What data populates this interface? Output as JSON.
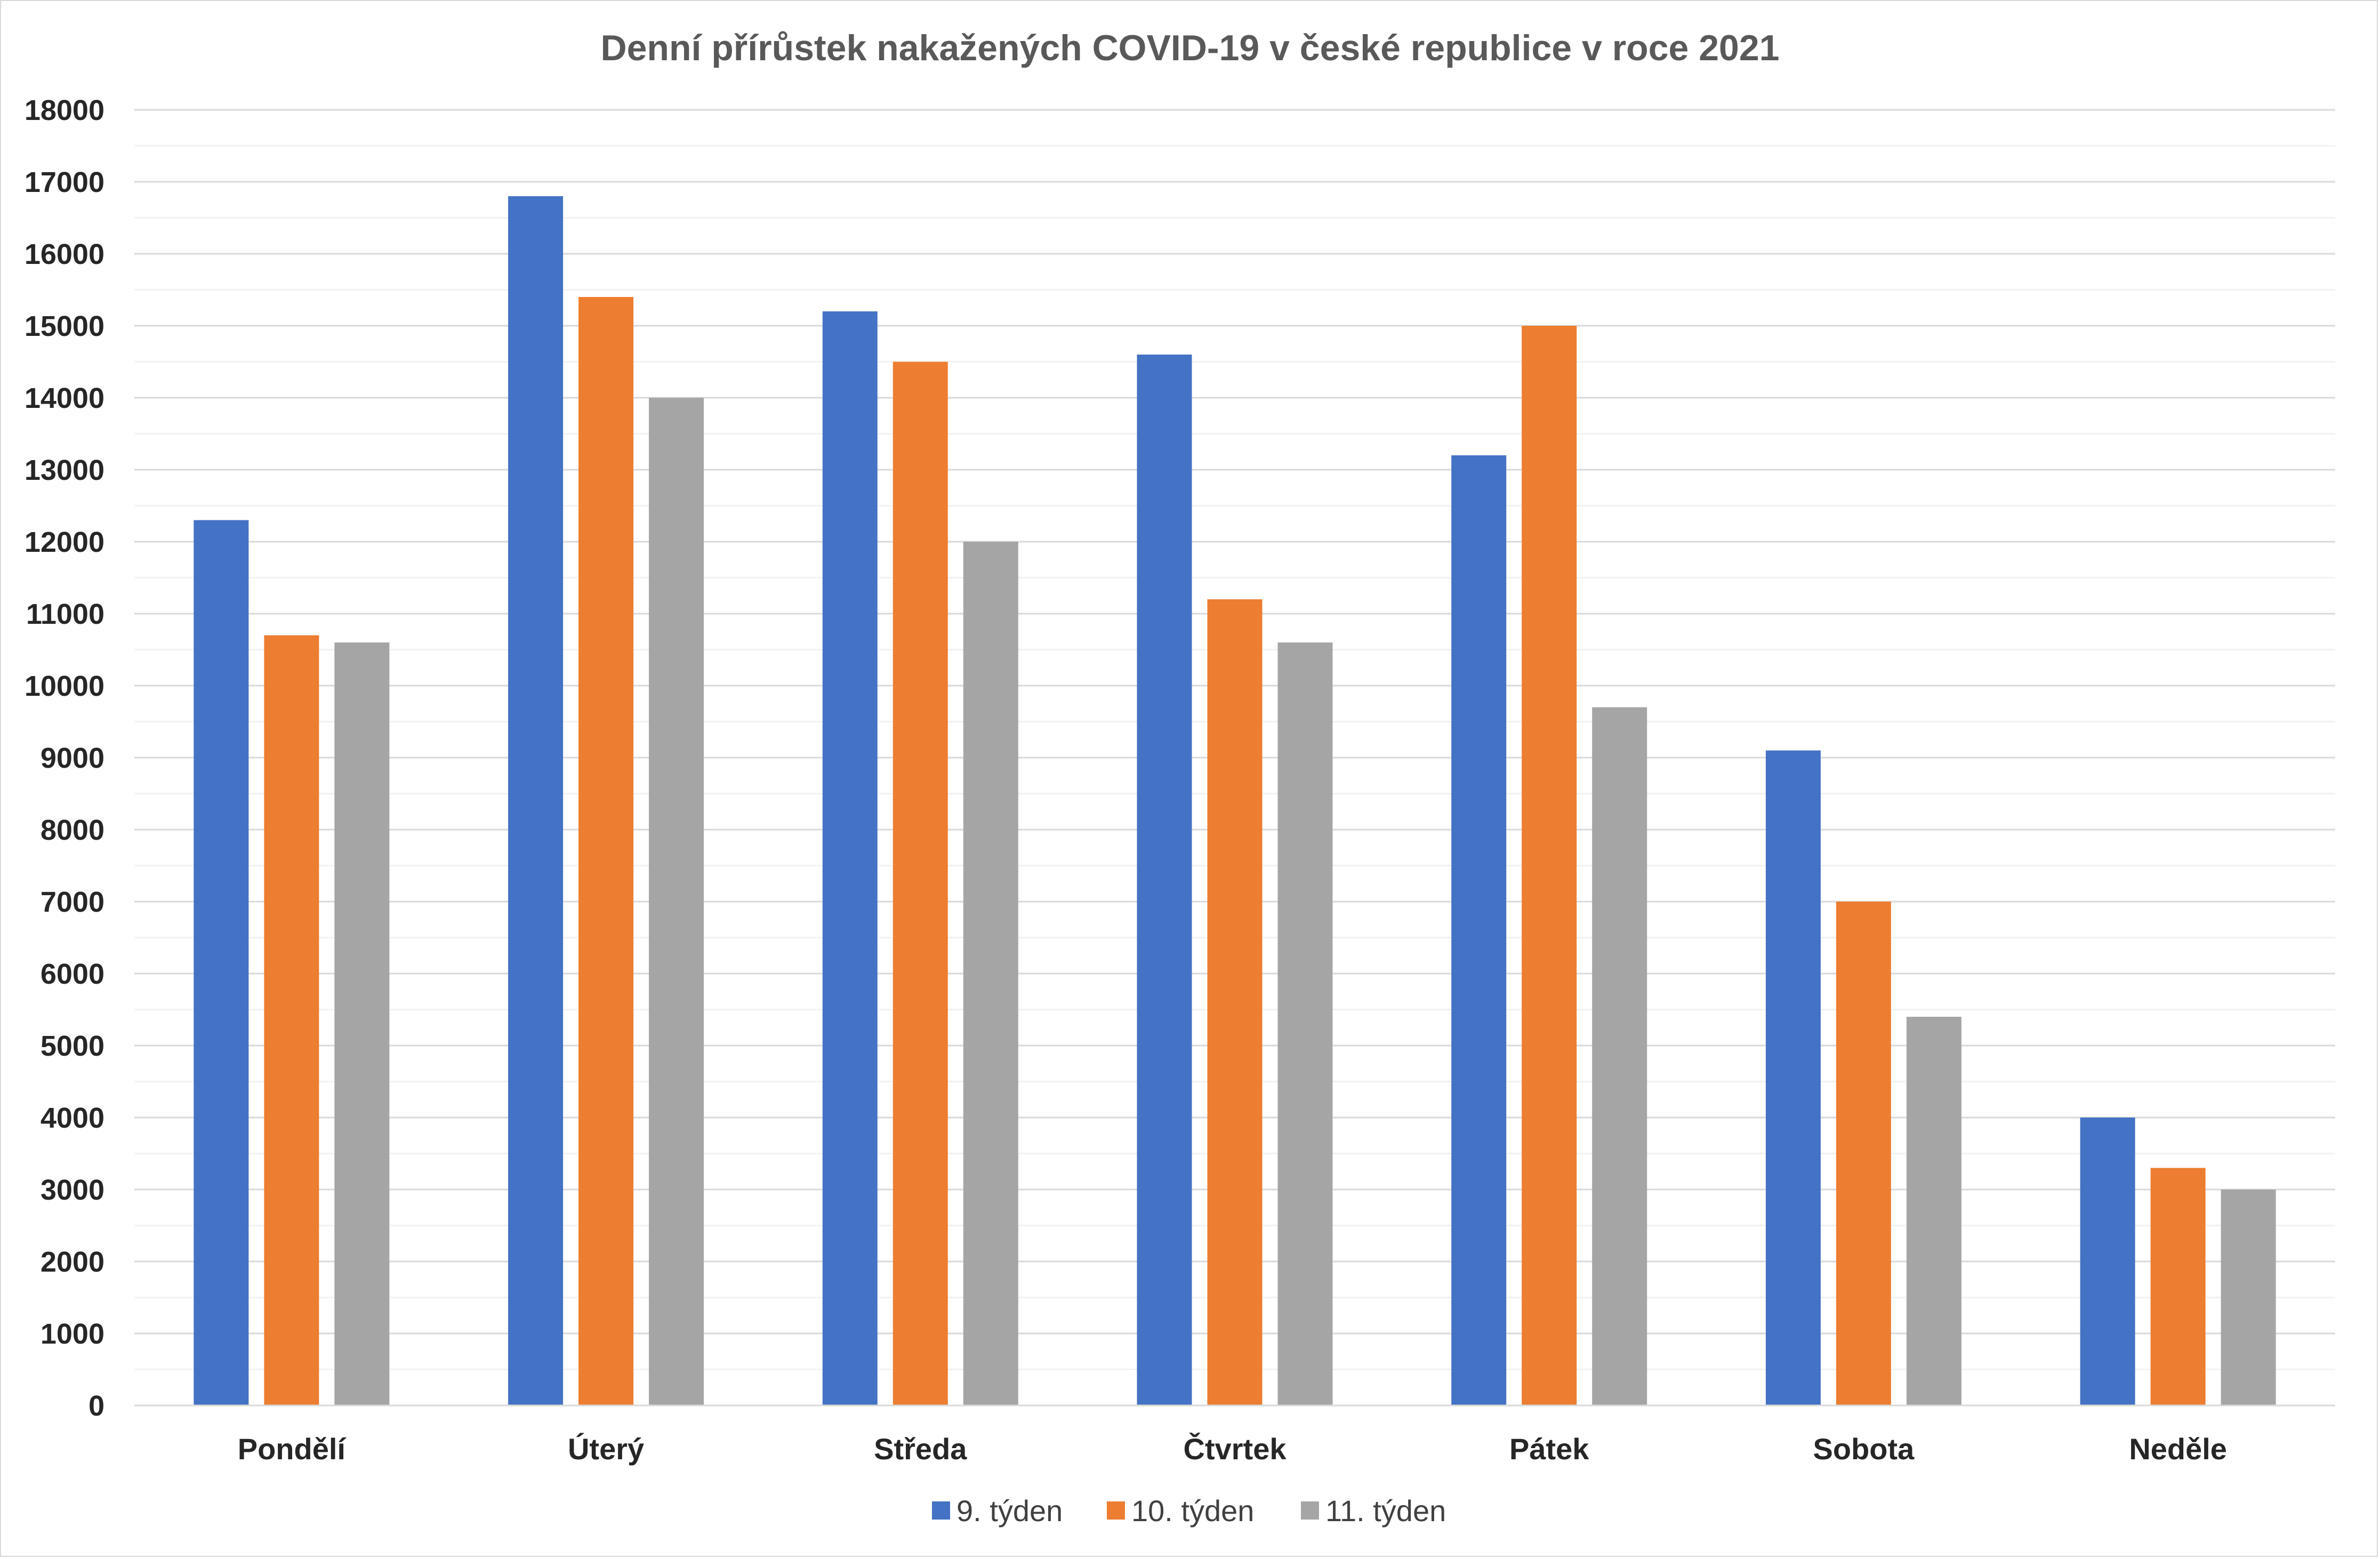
{
  "chart_data": {
    "type": "bar",
    "title": "Denní přírůstek nakažených COVID-19 v české republice v roce 2021",
    "xlabel": "",
    "ylabel": "",
    "categories": [
      "Pondělí",
      "Úterý",
      "Středa",
      "Čtvrtek",
      "Pátek",
      "Sobota",
      "Neděle"
    ],
    "series": [
      {
        "name": "9. týden",
        "color": "#4472c4",
        "values": [
          12300,
          16800,
          15200,
          14600,
          13200,
          9100,
          4000
        ]
      },
      {
        "name": "10. týden",
        "color": "#ed7d31",
        "values": [
          10700,
          15400,
          14500,
          11200,
          15000,
          7000,
          3300
        ]
      },
      {
        "name": "11. týden",
        "color": "#a5a5a5",
        "values": [
          10600,
          14000,
          12000,
          10600,
          9700,
          5400,
          3000
        ]
      }
    ],
    "ylim": [
      0,
      18000
    ],
    "yticks": [
      0,
      1000,
      2000,
      3000,
      4000,
      5000,
      6000,
      7000,
      8000,
      9000,
      10000,
      11000,
      12000,
      13000,
      14000,
      15000,
      16000,
      17000,
      18000
    ],
    "grid": true,
    "legend_position": "bottom"
  }
}
